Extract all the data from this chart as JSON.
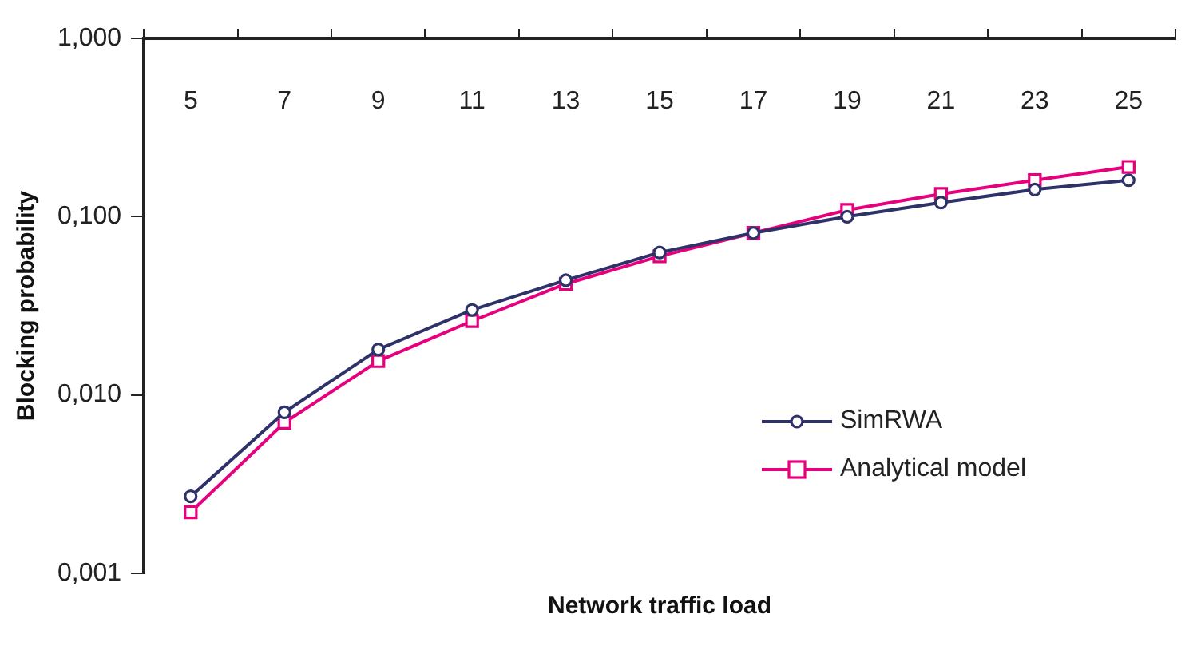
{
  "chart_data": {
    "type": "line",
    "xlabel": "Network traffic load",
    "ylabel": "Blocking probability",
    "categories": [
      "5",
      "7",
      "9",
      "11",
      "13",
      "15",
      "17",
      "19",
      "21",
      "23",
      "25"
    ],
    "series": [
      {
        "name": "SimRWA",
        "color": "#2e3268",
        "marker": "circle",
        "values": [
          0.0027,
          0.008,
          0.018,
          0.03,
          0.044,
          0.063,
          0.081,
          0.1,
          0.12,
          0.142,
          0.16
        ]
      },
      {
        "name": "Analytical model",
        "color": "#e6007e",
        "marker": "square",
        "values": [
          0.0022,
          0.007,
          0.0155,
          0.026,
          0.042,
          0.06,
          0.081,
          0.109,
          0.134,
          0.16,
          0.19
        ]
      }
    ],
    "log": "y",
    "ylim": [
      0.001,
      1
    ],
    "yticks": [
      {
        "value": 0.001,
        "label": "0,001"
      },
      {
        "value": 0.01,
        "label": "0,010"
      },
      {
        "value": 0.1,
        "label": "0,100"
      },
      {
        "value": 1,
        "label": "1,000"
      }
    ],
    "grid": false,
    "legend": "bottom right",
    "line_style": "solid"
  }
}
